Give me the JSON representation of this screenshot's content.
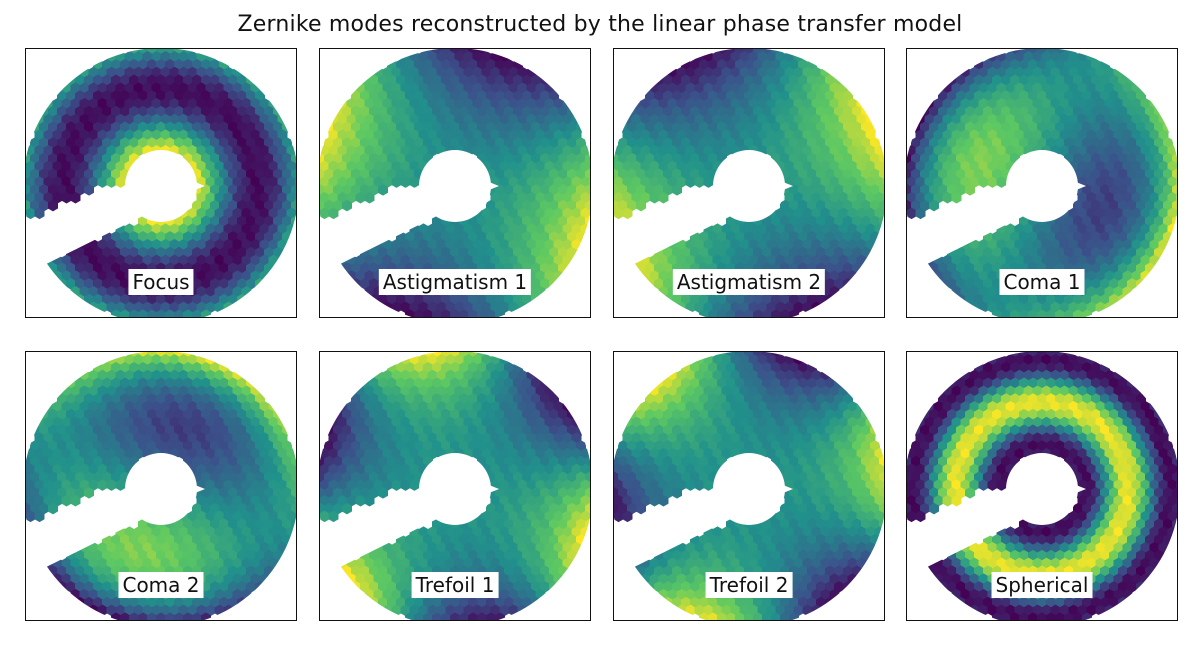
{
  "title": "Zernike modes reconstructed by the linear phase transfer model",
  "chart_data": {
    "type": "heatmap",
    "title": "Zernike modes reconstructed by the linear phase transfer model",
    "layout": "2 rows x 4 columns",
    "colormap": "viridis",
    "colormap_stops": [
      "#440154",
      "#3b528b",
      "#21918c",
      "#5ec962",
      "#fde725"
    ],
    "pupil": "annular aperture with central obscuration and a spider-arm gap toward the lower-left",
    "panels": [
      {
        "label": "Focus",
        "mode": "defocus",
        "n": 2,
        "m": 0
      },
      {
        "label": "Astigmatism 1",
        "mode": "astigmatism",
        "n": 2,
        "m": 2
      },
      {
        "label": "Astigmatism 2",
        "mode": "astigmatism",
        "n": 2,
        "m": -2
      },
      {
        "label": "Coma 1",
        "mode": "coma",
        "n": 3,
        "m": 1
      },
      {
        "label": "Coma 2",
        "mode": "coma",
        "n": 3,
        "m": -1
      },
      {
        "label": "Trefoil 1",
        "mode": "trefoil",
        "n": 3,
        "m": 3
      },
      {
        "label": "Trefoil 2",
        "mode": "trefoil",
        "n": 3,
        "m": -3
      },
      {
        "label": "Spherical",
        "mode": "spherical",
        "n": 4,
        "m": 0
      }
    ]
  }
}
